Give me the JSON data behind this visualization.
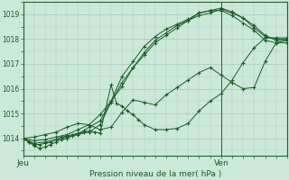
{
  "bg_color": "#cce8d8",
  "grid_color": "#a8c8b8",
  "line_color": "#1a5c28",
  "axis_color": "#2a6030",
  "text_color": "#1a5c28",
  "xlabel": "Pression niveau de la mer( hPa )",
  "yticks": [
    1014,
    1015,
    1016,
    1017,
    1018,
    1019
  ],
  "ylim": [
    1013.3,
    1019.5
  ],
  "xlim": [
    0,
    48
  ],
  "xtick_positions": [
    0,
    36
  ],
  "xtick_labels": [
    "Jeu",
    "Ven"
  ],
  "vline_x": 36,
  "series": [
    [
      0,
      1014.0,
      1,
      1013.85,
      2,
      1013.75,
      3,
      1013.75,
      4,
      1013.8,
      5,
      1013.85,
      6,
      1013.95,
      7,
      1014.05,
      8,
      1014.1,
      9,
      1014.15,
      10,
      1014.2,
      11,
      1014.3,
      12,
      1014.45,
      14,
      1014.7,
      16,
      1015.5,
      18,
      1016.5,
      20,
      1017.1,
      22,
      1017.7,
      24,
      1018.1,
      26,
      1018.4,
      28,
      1018.6,
      30,
      1018.8,
      32,
      1019.05,
      34,
      1019.15,
      36,
      1019.25,
      38,
      1019.1,
      40,
      1018.85,
      42,
      1018.45,
      44,
      1018.1,
      46,
      1018.0,
      48,
      1018.0
    ],
    [
      0,
      1014.0,
      2,
      1013.9,
      4,
      1013.95,
      6,
      1014.05,
      8,
      1014.15,
      10,
      1014.35,
      12,
      1014.55,
      14,
      1014.95,
      16,
      1015.5,
      18,
      1016.1,
      20,
      1016.85,
      22,
      1017.35,
      24,
      1017.85,
      26,
      1018.15,
      28,
      1018.45,
      30,
      1018.75,
      32,
      1018.95,
      34,
      1019.05,
      36,
      1019.2,
      38,
      1019.05,
      40,
      1018.85,
      42,
      1018.55,
      44,
      1018.15,
      46,
      1017.95,
      48,
      1017.95
    ],
    [
      0,
      1014.0,
      2,
      1014.05,
      4,
      1014.15,
      6,
      1014.25,
      8,
      1014.45,
      10,
      1014.6,
      12,
      1014.55,
      14,
      1014.35,
      16,
      1014.45,
      18,
      1015.05,
      20,
      1015.55,
      22,
      1015.45,
      24,
      1015.35,
      26,
      1015.75,
      28,
      1016.05,
      30,
      1016.35,
      32,
      1016.65,
      34,
      1016.85,
      36,
      1016.55,
      38,
      1016.25,
      40,
      1016.0,
      42,
      1016.05,
      44,
      1017.1,
      46,
      1017.85,
      48,
      1017.95
    ],
    [
      0,
      1014.0,
      2,
      1013.8,
      4,
      1013.85,
      6,
      1013.95,
      8,
      1014.05,
      10,
      1014.15,
      12,
      1014.25,
      14,
      1014.55,
      16,
      1015.45,
      18,
      1016.25,
      20,
      1016.85,
      22,
      1017.45,
      24,
      1017.95,
      26,
      1018.25,
      28,
      1018.55,
      30,
      1018.75,
      32,
      1019.05,
      34,
      1019.15,
      36,
      1019.15,
      38,
      1018.95,
      40,
      1018.65,
      42,
      1018.35,
      44,
      1017.95,
      46,
      1017.85,
      48,
      1017.85
    ],
    [
      0,
      1014.0,
      1,
      1013.85,
      2,
      1013.7,
      3,
      1013.6,
      4,
      1013.65,
      5,
      1013.75,
      6,
      1013.85,
      7,
      1013.95,
      8,
      1014.0,
      9,
      1014.1,
      10,
      1014.2,
      11,
      1014.25,
      12,
      1014.3,
      13,
      1014.25,
      14,
      1014.2,
      16,
      1016.15,
      17,
      1015.4,
      18,
      1015.3,
      19,
      1015.1,
      20,
      1014.95,
      21,
      1014.75,
      22,
      1014.55,
      24,
      1014.35,
      26,
      1014.35,
      28,
      1014.4,
      30,
      1014.6,
      32,
      1015.1,
      34,
      1015.5,
      36,
      1015.8,
      38,
      1016.35,
      40,
      1017.05,
      42,
      1017.65,
      44,
      1018.05,
      46,
      1018.05,
      48,
      1018.05
    ]
  ]
}
